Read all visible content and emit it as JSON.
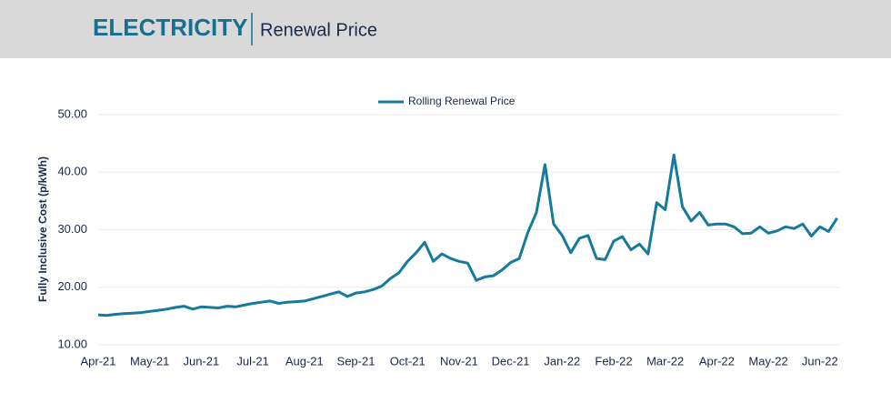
{
  "header": {
    "title": "ELECTRICITY",
    "subtitle": "Renewal Price"
  },
  "chart_data": {
    "type": "line",
    "y_label": "Fully Inclusive Cost (p/kWh)",
    "categories": [
      "Apr-21",
      null,
      null,
      null,
      null,
      null,
      "May-21",
      null,
      null,
      null,
      null,
      null,
      "Jun-21",
      null,
      null,
      null,
      null,
      null,
      "Jul-21",
      null,
      null,
      null,
      null,
      null,
      "Aug-21",
      null,
      null,
      null,
      null,
      null,
      "Sep-21",
      null,
      null,
      null,
      null,
      null,
      "Oct-21",
      null,
      null,
      null,
      null,
      null,
      "Nov-21",
      null,
      null,
      null,
      null,
      null,
      "Dec-21",
      null,
      null,
      null,
      null,
      null,
      "Jan-22",
      null,
      null,
      null,
      null,
      null,
      "Feb-22",
      null,
      null,
      null,
      null,
      null,
      "Mar-22",
      null,
      null,
      null,
      null,
      null,
      "Apr-22",
      null,
      null,
      null,
      null,
      null,
      "May-22",
      null,
      null,
      null,
      null,
      null,
      "Jun-22",
      null,
      null
    ],
    "series": [
      {
        "name": "Rolling Renewal Price",
        "color": "#167a9c",
        "values": [
          15.2,
          15.1,
          15.3,
          15.4,
          15.5,
          15.6,
          15.8,
          16.0,
          16.2,
          16.5,
          16.7,
          16.2,
          16.6,
          16.5,
          16.4,
          16.7,
          16.6,
          16.9,
          17.2,
          17.4,
          17.6,
          17.2,
          17.4,
          17.5,
          17.6,
          18.0,
          18.4,
          18.8,
          19.2,
          18.4,
          19.0,
          19.2,
          19.6,
          20.2,
          21.5,
          22.5,
          24.5,
          26.0,
          27.8,
          24.5,
          25.8,
          25.0,
          24.5,
          24.2,
          21.2,
          21.8,
          22.0,
          23.0,
          24.3,
          25.0,
          29.5,
          33.0,
          41.3,
          31.0,
          29.0,
          26.0,
          28.5,
          29.0,
          25.0,
          24.8,
          28.0,
          28.8,
          26.5,
          27.5,
          25.8,
          34.7,
          33.5,
          43.0,
          34.0,
          31.5,
          33.0,
          30.8,
          31.0,
          31.0,
          30.5,
          29.3,
          29.4,
          30.5,
          29.4,
          29.8,
          30.5,
          30.2,
          31.0,
          28.9,
          30.5,
          29.7,
          32.0
        ]
      }
    ],
    "ylim": [
      10,
      50
    ],
    "yticks": [
      {
        "value": 10,
        "label": "10.00"
      },
      {
        "value": 20,
        "label": "20.00"
      },
      {
        "value": 30,
        "label": "30.00"
      },
      {
        "value": 40,
        "label": "40.00"
      },
      {
        "value": 50,
        "label": "50.00"
      }
    ],
    "grid": true,
    "legend": "top"
  }
}
